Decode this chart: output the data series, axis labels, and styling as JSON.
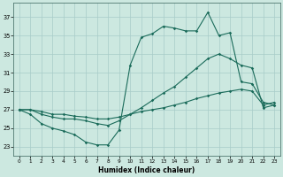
{
  "xlabel": "Humidex (Indice chaleur)",
  "bg_color": "#cce8e0",
  "grid_color": "#a8ccc8",
  "line_color": "#1a6b5a",
  "xlim": [
    -0.5,
    23.5
  ],
  "ylim": [
    22.0,
    38.5
  ],
  "xticks": [
    0,
    1,
    2,
    3,
    4,
    5,
    6,
    7,
    8,
    9,
    10,
    11,
    12,
    13,
    14,
    15,
    16,
    17,
    18,
    19,
    20,
    21,
    22,
    23
  ],
  "yticks": [
    23,
    25,
    27,
    29,
    31,
    33,
    35,
    37
  ],
  "line1_x": [
    0,
    1,
    2,
    3,
    4,
    5,
    6,
    7,
    8,
    9,
    10,
    11,
    12,
    13,
    14,
    15,
    16,
    17,
    18,
    19,
    20,
    21,
    22,
    23
  ],
  "line1_y": [
    27.0,
    26.5,
    25.5,
    25.0,
    24.7,
    24.3,
    23.5,
    23.2,
    23.2,
    24.8,
    31.8,
    34.8,
    35.2,
    36.0,
    35.8,
    35.5,
    35.5,
    37.5,
    35.0,
    35.3,
    30.0,
    29.8,
    27.8,
    27.5
  ],
  "line2_x": [
    0,
    1,
    2,
    3,
    4,
    5,
    6,
    7,
    8,
    9,
    10,
    11,
    12,
    13,
    14,
    15,
    16,
    17,
    18,
    19,
    20,
    21,
    22,
    23
  ],
  "line2_y": [
    27.0,
    27.0,
    26.5,
    26.2,
    26.0,
    26.0,
    25.8,
    25.5,
    25.3,
    25.8,
    26.5,
    27.2,
    28.0,
    28.8,
    29.5,
    30.5,
    31.5,
    32.5,
    33.0,
    32.5,
    31.8,
    31.5,
    27.2,
    27.5
  ],
  "line3_x": [
    0,
    1,
    2,
    3,
    4,
    5,
    6,
    7,
    8,
    9,
    10,
    11,
    12,
    13,
    14,
    15,
    16,
    17,
    18,
    19,
    20,
    21,
    22,
    23
  ],
  "line3_y": [
    27.0,
    27.0,
    26.8,
    26.5,
    26.5,
    26.3,
    26.2,
    26.0,
    26.0,
    26.2,
    26.5,
    26.8,
    27.0,
    27.2,
    27.5,
    27.8,
    28.2,
    28.5,
    28.8,
    29.0,
    29.2,
    29.0,
    27.5,
    27.8
  ]
}
